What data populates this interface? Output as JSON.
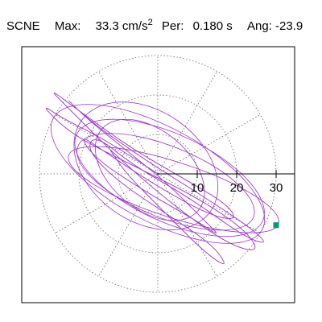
{
  "header": {
    "station": "SCNE",
    "max_label": "Max:",
    "max_value": "33.3",
    "max_unit": "cm/s",
    "max_unit_exp": "2",
    "per_label": "Per:",
    "per_value": "0.180 s",
    "ang_label": "Ang:",
    "ang_value": "-23.9"
  },
  "chart_data": {
    "type": "scatter",
    "title": "SCNE Max: 33.3 cm/s2 Per: 0.180 s Ang: -23.9",
    "polar_grid": {
      "ring_values": [
        10,
        20,
        30
      ],
      "angular_step_deg": 30,
      "grid": true
    },
    "axis_ticks": [
      "10",
      "20",
      "30"
    ],
    "axis_range": [
      -34,
      34
    ],
    "max_value": 33.3,
    "marker": {
      "x": 30,
      "y": -13,
      "shape": "square"
    },
    "trace": {
      "description": "particle-motion orbit, dominant orientation from upper-left to lower-right",
      "color": "#9932CC",
      "points_xy": [
        [
          0,
          0
        ],
        [
          -12,
          8
        ],
        [
          -24,
          14
        ],
        [
          -30,
          18
        ],
        [
          -22,
          10
        ],
        [
          -6,
          2
        ],
        [
          10,
          -6
        ],
        [
          22,
          -14
        ],
        [
          26,
          -20
        ],
        [
          18,
          -18
        ],
        [
          4,
          -8
        ],
        [
          -10,
          4
        ],
        [
          -22,
          16
        ],
        [
          -28,
          22
        ],
        [
          -20,
          16
        ],
        [
          -6,
          6
        ],
        [
          8,
          -2
        ],
        [
          18,
          -8
        ],
        [
          20,
          -12
        ],
        [
          12,
          -10
        ],
        [
          -2,
          -2
        ],
        [
          -14,
          6
        ],
        [
          -20,
          10
        ],
        [
          -16,
          4
        ],
        [
          -4,
          -4
        ],
        [
          10,
          -12
        ],
        [
          16,
          -16
        ],
        [
          12,
          -12
        ],
        [
          2,
          -2
        ],
        [
          -8,
          6
        ],
        [
          -18,
          14
        ],
        [
          -24,
          20
        ],
        [
          -18,
          14
        ],
        [
          -4,
          4
        ],
        [
          12,
          -6
        ],
        [
          24,
          -14
        ],
        [
          28,
          -18
        ],
        [
          22,
          -16
        ],
        [
          8,
          -6
        ],
        [
          -6,
          2
        ],
        [
          -16,
          10
        ],
        [
          -18,
          6
        ],
        [
          -10,
          -2
        ],
        [
          2,
          -10
        ],
        [
          14,
          -18
        ],
        [
          18,
          -24
        ],
        [
          12,
          -20
        ],
        [
          2,
          -10
        ],
        [
          -8,
          0
        ],
        [
          -12,
          6
        ]
      ]
    },
    "colors": {
      "trace": "#9932CC",
      "marker": "#009977",
      "grid": "#666666",
      "axis": "#000000"
    }
  }
}
